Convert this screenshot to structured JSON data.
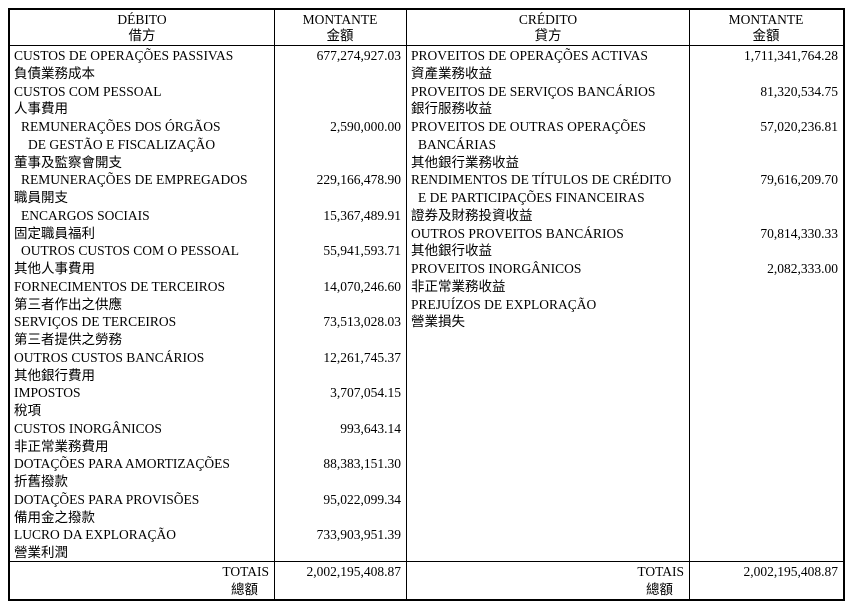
{
  "document": {
    "background": "#ffffff",
    "line_color": "#000000",
    "text_color": "#000000"
  },
  "debit": {
    "header": {
      "title_pt": "DÉBITO",
      "title_zh": "借方",
      "amount_pt": "MONTANTE",
      "amount_zh": "金額"
    },
    "lines": [
      {
        "text": "CUSTOS DE OPERAÇÕES PASSIVAS",
        "indent": 0,
        "amount": "677,274,927.03"
      },
      {
        "text": "負債業務成本",
        "indent": 0
      },
      {
        "text": "CUSTOS COM PESSOAL",
        "indent": 0
      },
      {
        "text": "人事費用",
        "indent": 0
      },
      {
        "text": "REMUNERAÇÕES DOS ÓRGÃOS",
        "indent": 1,
        "amount": "2,590,000.00"
      },
      {
        "text": "DE GESTÃO E FISCALIZAÇÃO",
        "indent": 2
      },
      {
        "text": "董事及監察會開支",
        "indent": 0
      },
      {
        "text": "REMUNERAÇÕES DE EMPREGADOS",
        "indent": 1,
        "amount": "229,166,478.90"
      },
      {
        "text": "職員開支",
        "indent": 0
      },
      {
        "text": "ENCARGOS SOCIAIS",
        "indent": 1,
        "amount": "15,367,489.91"
      },
      {
        "text": "固定職員福利",
        "indent": 0
      },
      {
        "text": "OUTROS CUSTOS COM O PESSOAL",
        "indent": 1,
        "amount": "55,941,593.71"
      },
      {
        "text": "其他人事費用",
        "indent": 0
      },
      {
        "text": "FORNECIMENTOS DE TERCEIROS",
        "indent": 0,
        "amount": "14,070,246.60"
      },
      {
        "text": "第三者作出之供應",
        "indent": 0
      },
      {
        "text": "SERVIÇOS DE TERCEIROS",
        "indent": 0,
        "amount": "73,513,028.03"
      },
      {
        "text": "第三者提供之勞務",
        "indent": 0
      },
      {
        "text": "OUTROS CUSTOS BANCÁRIOS",
        "indent": 0,
        "amount": "12,261,745.37"
      },
      {
        "text": "其他銀行費用",
        "indent": 0
      },
      {
        "text": "IMPOSTOS",
        "indent": 0,
        "amount": "3,707,054.15"
      },
      {
        "text": "稅項",
        "indent": 0
      },
      {
        "text": "CUSTOS INORGÂNICOS",
        "indent": 0,
        "amount": "993,643.14"
      },
      {
        "text": "非正常業務費用",
        "indent": 0
      },
      {
        "text": "DOTAÇÕES PARA AMORTIZAÇÕES",
        "indent": 0,
        "amount": "88,383,151.30"
      },
      {
        "text": "折舊撥款",
        "indent": 0
      },
      {
        "text": "DOTAÇÕES PARA PROVISÕES",
        "indent": 0,
        "amount": "95,022,099.34"
      },
      {
        "text": "備用金之撥款",
        "indent": 0
      },
      {
        "text": "LUCRO DA EXPLORAÇÃO",
        "indent": 0,
        "amount": "733,903,951.39"
      },
      {
        "text": "營業利潤",
        "indent": 0
      }
    ],
    "totals": {
      "label_pt": "TOTAIS",
      "label_zh": "總額",
      "amount": "2,002,195,408.87"
    }
  },
  "credit": {
    "header": {
      "title_pt": "CRÉDITO",
      "title_zh": "貸方",
      "amount_pt": "MONTANTE",
      "amount_zh": "金額"
    },
    "lines": [
      {
        "text": "PROVEITOS DE OPERAÇÕES ACTIVAS",
        "indent": 0,
        "amount": "1,711,341,764.28"
      },
      {
        "text": "資產業務收益",
        "indent": 0
      },
      {
        "text": "PROVEITOS DE SERVIÇOS BANCÁRIOS",
        "indent": 0,
        "amount": "81,320,534.75"
      },
      {
        "text": "銀行服務收益",
        "indent": 0
      },
      {
        "text": "PROVEITOS DE OUTRAS OPERAÇÕES",
        "indent": 0,
        "amount": "57,020,236.81"
      },
      {
        "text": "BANCÁRIAS",
        "indent": 1
      },
      {
        "text": "其他銀行業務收益",
        "indent": 0
      },
      {
        "text": "RENDIMENTOS DE TÍTULOS DE CRÉDITO",
        "indent": 0,
        "amount": "79,616,209.70"
      },
      {
        "text": "E DE PARTICIPAÇÕES FINANCEIRAS",
        "indent": 1
      },
      {
        "text": "證券及財務投資收益",
        "indent": 0
      },
      {
        "text": "OUTROS PROVEITOS BANCÁRIOS",
        "indent": 0,
        "amount": "70,814,330.33"
      },
      {
        "text": "其他銀行收益",
        "indent": 0
      },
      {
        "text": "PROVEITOS INORGÂNICOS",
        "indent": 0,
        "amount": "2,082,333.00"
      },
      {
        "text": "非正常業務收益",
        "indent": 0
      },
      {
        "text": "PREJUÍZOS DE EXPLORAÇÃO",
        "indent": 0
      },
      {
        "text": "營業損失",
        "indent": 0
      }
    ],
    "totals": {
      "label_pt": "TOTAIS",
      "label_zh": "總額",
      "amount": "2,002,195,408.87"
    }
  }
}
